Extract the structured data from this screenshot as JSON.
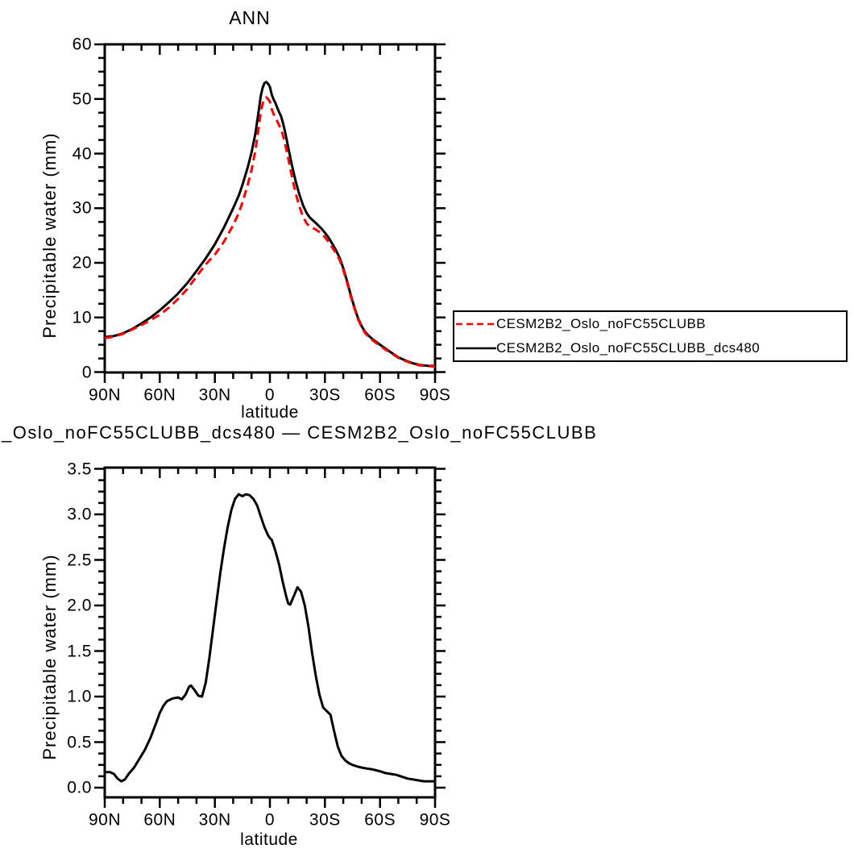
{
  "page": {
    "background": "#ffffff",
    "text_color": "#000000"
  },
  "legend": {
    "border_color": "#000000"
  },
  "chart_data": [
    {
      "type": "line",
      "title": "ANN",
      "xlabel": "latitude",
      "ylabel": "Precipitable water (mm)",
      "xlim": [
        90,
        -90
      ],
      "ylim": [
        0,
        60
      ],
      "grid": false,
      "legend_position": "outside-right",
      "x_ticks": {
        "labels": [
          "90N",
          "60N",
          "30N",
          "0",
          "30S",
          "60S",
          "90S"
        ],
        "lats": [
          90,
          60,
          30,
          0,
          -30,
          -60,
          -90
        ],
        "minor_step_deg": 10
      },
      "y_ticks": {
        "labels": [
          "0",
          "10",
          "20",
          "30",
          "40",
          "50",
          "60"
        ],
        "values": [
          0,
          10,
          20,
          30,
          40,
          50,
          60
        ],
        "minors_per_interval": 3
      },
      "series": [
        {
          "name": "CESM2B2_Oslo_noFC55CLUBB",
          "color": "#ff0000",
          "line_style": "dashed",
          "points": [
            [
              90,
              6.2
            ],
            [
              85,
              6.5
            ],
            [
              80,
              7.0
            ],
            [
              75,
              7.8
            ],
            [
              70,
              8.6
            ],
            [
              65,
              9.5
            ],
            [
              60,
              10.5
            ],
            [
              55,
              11.8
            ],
            [
              50,
              13.4
            ],
            [
              45,
              15.2
            ],
            [
              40,
              17.5
            ],
            [
              35,
              19.7
            ],
            [
              30,
              21.5
            ],
            [
              25,
              23.9
            ],
            [
              20,
              26.9
            ],
            [
              17,
              29.1
            ],
            [
              15,
              31.0
            ],
            [
              12,
              34.4
            ],
            [
              10,
              37.0
            ],
            [
              8,
              40.4
            ],
            [
              6,
              44.9
            ],
            [
              5,
              47.5
            ],
            [
              4,
              49.1
            ],
            [
              3,
              50.0
            ],
            [
              2,
              50.3
            ],
            [
              1,
              50.0
            ],
            [
              0,
              49.5
            ],
            [
              -1,
              48.1
            ],
            [
              -2,
              47.2
            ],
            [
              -3,
              46.7
            ],
            [
              -4,
              45.9
            ],
            [
              -5,
              45.2
            ],
            [
              -6,
              44.5
            ],
            [
              -7,
              43.5
            ],
            [
              -8,
              42.2
            ],
            [
              -9,
              40.7
            ],
            [
              -10,
              39.1
            ],
            [
              -12,
              35.8
            ],
            [
              -14,
              32.8
            ],
            [
              -16,
              30.4
            ],
            [
              -18,
              28.5
            ],
            [
              -20,
              27.2
            ],
            [
              -22,
              26.6
            ],
            [
              -25,
              26.1
            ],
            [
              -28,
              25.4
            ],
            [
              -30,
              24.7
            ],
            [
              -32,
              23.8
            ],
            [
              -34,
              22.8
            ],
            [
              -36,
              21.8
            ],
            [
              -38,
              20.5
            ],
            [
              -40,
              18.7
            ],
            [
              -42,
              16.4
            ],
            [
              -44,
              13.9
            ],
            [
              -46,
              11.7
            ],
            [
              -48,
              9.7
            ],
            [
              -50,
              8.2
            ],
            [
              -52,
              7.1
            ],
            [
              -54,
              6.4
            ],
            [
              -56,
              5.8
            ],
            [
              -58,
              5.3
            ],
            [
              -60,
              4.8
            ],
            [
              -63,
              4.1
            ],
            [
              -66,
              3.5
            ],
            [
              -70,
              2.6
            ],
            [
              -74,
              2.0
            ],
            [
              -78,
              1.5
            ],
            [
              -82,
              1.2
            ],
            [
              -86,
              1.1
            ],
            [
              -90,
              1.0
            ]
          ]
        },
        {
          "name": "CESM2B2_Oslo_noFC55CLUBB_dcs480",
          "color": "#000000",
          "line_style": "solid",
          "points": [
            [
              90,
              6.4
            ],
            [
              85,
              6.6
            ],
            [
              80,
              7.1
            ],
            [
              75,
              7.9
            ],
            [
              70,
              8.9
            ],
            [
              65,
              10.0
            ],
            [
              60,
              11.3
            ],
            [
              55,
              12.8
            ],
            [
              50,
              14.4
            ],
            [
              45,
              16.3
            ],
            [
              40,
              18.5
            ],
            [
              35,
              20.8
            ],
            [
              30,
              23.4
            ],
            [
              25,
              26.5
            ],
            [
              20,
              30.0
            ],
            [
              17,
              32.3
            ],
            [
              15,
              34.2
            ],
            [
              12,
              37.6
            ],
            [
              10,
              40.2
            ],
            [
              8,
              43.5
            ],
            [
              6,
              48.0
            ],
            [
              5,
              50.5
            ],
            [
              4,
              52.0
            ],
            [
              3,
              52.9
            ],
            [
              2,
              53.1
            ],
            [
              1,
              52.8
            ],
            [
              0,
              52.2
            ],
            [
              -1,
              50.8
            ],
            [
              -2,
              49.9
            ],
            [
              -3,
              49.3
            ],
            [
              -4,
              48.4
            ],
            [
              -5,
              47.6
            ],
            [
              -6,
              46.9
            ],
            [
              -7,
              45.8
            ],
            [
              -8,
              44.4
            ],
            [
              -9,
              42.8
            ],
            [
              -10,
              41.1
            ],
            [
              -12,
              37.9
            ],
            [
              -14,
              35.0
            ],
            [
              -16,
              32.6
            ],
            [
              -18,
              30.6
            ],
            [
              -20,
              29.1
            ],
            [
              -22,
              28.2
            ],
            [
              -25,
              27.3
            ],
            [
              -28,
              26.3
            ],
            [
              -30,
              25.5
            ],
            [
              -32,
              24.6
            ],
            [
              -34,
              23.5
            ],
            [
              -36,
              22.3
            ],
            [
              -38,
              20.9
            ],
            [
              -40,
              19.0
            ],
            [
              -42,
              16.7
            ],
            [
              -44,
              14.2
            ],
            [
              -46,
              11.9
            ],
            [
              -48,
              9.9
            ],
            [
              -50,
              8.4
            ],
            [
              -52,
              7.3
            ],
            [
              -54,
              6.6
            ],
            [
              -56,
              6.0
            ],
            [
              -58,
              5.5
            ],
            [
              -60,
              5.0
            ],
            [
              -63,
              4.3
            ],
            [
              -66,
              3.6
            ],
            [
              -70,
              2.7
            ],
            [
              -74,
              2.1
            ],
            [
              -78,
              1.6
            ],
            [
              -82,
              1.3
            ],
            [
              -86,
              1.15
            ],
            [
              -90,
              1.1
            ]
          ]
        }
      ]
    },
    {
      "type": "line",
      "title": "_Oslo_noFC55CLUBB_dcs480 — CESM2B2_Oslo_noFC55CLUBB",
      "xlabel": "latitude",
      "ylabel": "Precipitable water (mm)",
      "xlim": [
        90,
        -90
      ],
      "ylim": [
        0,
        3.5
      ],
      "grid": false,
      "x_ticks": {
        "labels": [
          "90N",
          "60N",
          "30N",
          "0",
          "30S",
          "60S",
          "90S"
        ],
        "lats": [
          90,
          60,
          30,
          0,
          -30,
          -60,
          -90
        ],
        "minor_step_deg": 10
      },
      "y_ticks": {
        "labels": [
          "0.0",
          "0.5",
          "1.0",
          "1.5",
          "2.0",
          "2.5",
          "3.0",
          "3.5"
        ],
        "values": [
          0,
          0.5,
          1.0,
          1.5,
          2.0,
          2.5,
          3.0,
          3.5
        ],
        "minors_per_interval": 3
      },
      "series": [
        {
          "color": "#000000",
          "line_style": "solid",
          "points": [
            [
              90,
              0.17
            ],
            [
              87,
              0.17
            ],
            [
              85,
              0.15
            ],
            [
              83,
              0.1
            ],
            [
              81,
              0.07
            ],
            [
              79,
              0.09
            ],
            [
              77,
              0.15
            ],
            [
              74,
              0.22
            ],
            [
              71,
              0.32
            ],
            [
              68,
              0.42
            ],
            [
              65,
              0.55
            ],
            [
              62,
              0.71
            ],
            [
              60,
              0.82
            ],
            [
              58,
              0.9
            ],
            [
              56,
              0.95
            ],
            [
              53,
              0.98
            ],
            [
              50,
              0.99
            ],
            [
              48,
              0.97
            ],
            [
              46,
              1.02
            ],
            [
              44,
              1.11
            ],
            [
              43,
              1.12
            ],
            [
              41,
              1.07
            ],
            [
              39,
              1.01
            ],
            [
              37,
              1.0
            ],
            [
              35,
              1.15
            ],
            [
              33,
              1.42
            ],
            [
              31,
              1.74
            ],
            [
              29,
              2.05
            ],
            [
              27,
              2.36
            ],
            [
              25,
              2.63
            ],
            [
              23,
              2.86
            ],
            [
              21,
              3.05
            ],
            [
              19,
              3.17
            ],
            [
              17,
              3.22
            ],
            [
              15,
              3.2
            ],
            [
              13,
              3.22
            ],
            [
              11,
              3.21
            ],
            [
              9,
              3.17
            ],
            [
              7,
              3.1
            ],
            [
              5,
              2.98
            ],
            [
              3,
              2.86
            ],
            [
              1,
              2.77
            ],
            [
              0,
              2.74
            ],
            [
              -1,
              2.72
            ],
            [
              -3,
              2.6
            ],
            [
              -5,
              2.45
            ],
            [
              -7,
              2.26
            ],
            [
              -9,
              2.09
            ],
            [
              -10,
              2.02
            ],
            [
              -11,
              2.01
            ],
            [
              -13,
              2.1
            ],
            [
              -15,
              2.2
            ],
            [
              -17,
              2.15
            ],
            [
              -19,
              2.0
            ],
            [
              -21,
              1.77
            ],
            [
              -23,
              1.48
            ],
            [
              -25,
              1.23
            ],
            [
              -27,
              1.02
            ],
            [
              -29,
              0.88
            ],
            [
              -31,
              0.84
            ],
            [
              -33,
              0.8
            ],
            [
              -35,
              0.62
            ],
            [
              -37,
              0.45
            ],
            [
              -39,
              0.35
            ],
            [
              -41,
              0.3
            ],
            [
              -43,
              0.27
            ],
            [
              -45,
              0.25
            ],
            [
              -48,
              0.23
            ],
            [
              -50,
              0.22
            ],
            [
              -53,
              0.21
            ],
            [
              -56,
              0.2
            ],
            [
              -58,
              0.19
            ],
            [
              -60,
              0.18
            ],
            [
              -63,
              0.16
            ],
            [
              -66,
              0.15
            ],
            [
              -69,
              0.14
            ],
            [
              -72,
              0.12
            ],
            [
              -75,
              0.1
            ],
            [
              -78,
              0.09
            ],
            [
              -81,
              0.08
            ],
            [
              -84,
              0.07
            ],
            [
              -87,
              0.07
            ],
            [
              -90,
              0.07
            ]
          ]
        }
      ]
    }
  ]
}
